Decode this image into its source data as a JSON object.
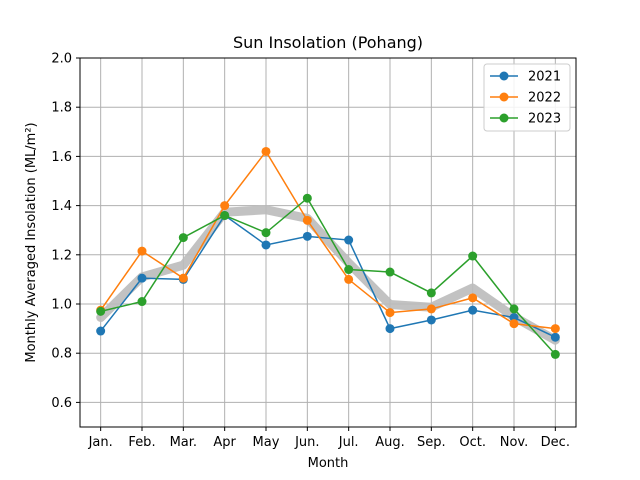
{
  "chart_data": {
    "type": "line",
    "title": "Sun Insolation (Pohang)",
    "xlabel": "Month",
    "ylabel": "Monthly Averaged Insolation (ML/m²)",
    "categories": [
      "Jan.",
      "Feb.",
      "Mar.",
      "Apr",
      "May",
      "Jun.",
      "Jul.",
      "Aug.",
      "Sep.",
      "Oct.",
      "Nov.",
      "Dec."
    ],
    "ylim": [
      0.5,
      2.0
    ],
    "yticks": [
      "0.6",
      "0.8",
      "1.0",
      "1.2",
      "1.4",
      "1.6",
      "1.8",
      "2.0"
    ],
    "grid": true,
    "legend_position": "top-right",
    "series": [
      {
        "name": "2021",
        "color": "#1f77b4",
        "values": [
          0.89,
          1.105,
          1.1,
          1.36,
          1.24,
          1.275,
          1.26,
          0.9,
          0.935,
          0.975,
          0.945,
          0.865
        ]
      },
      {
        "name": "2022",
        "color": "#ff7f0e",
        "values": [
          0.975,
          1.215,
          1.105,
          1.4,
          1.62,
          1.34,
          1.1,
          0.965,
          0.98,
          1.025,
          0.92,
          0.9
        ]
      },
      {
        "name": "2023",
        "color": "#2ca02c",
        "values": [
          0.97,
          1.01,
          1.27,
          1.36,
          1.29,
          1.43,
          1.14,
          1.13,
          1.045,
          1.195,
          0.98,
          0.795
        ]
      }
    ],
    "average_line": {
      "color": "#bbbbbb",
      "values": [
        0.945,
        1.11,
        1.158,
        1.373,
        1.383,
        1.348,
        1.167,
        0.998,
        0.987,
        1.065,
        0.948,
        0.853
      ]
    }
  }
}
